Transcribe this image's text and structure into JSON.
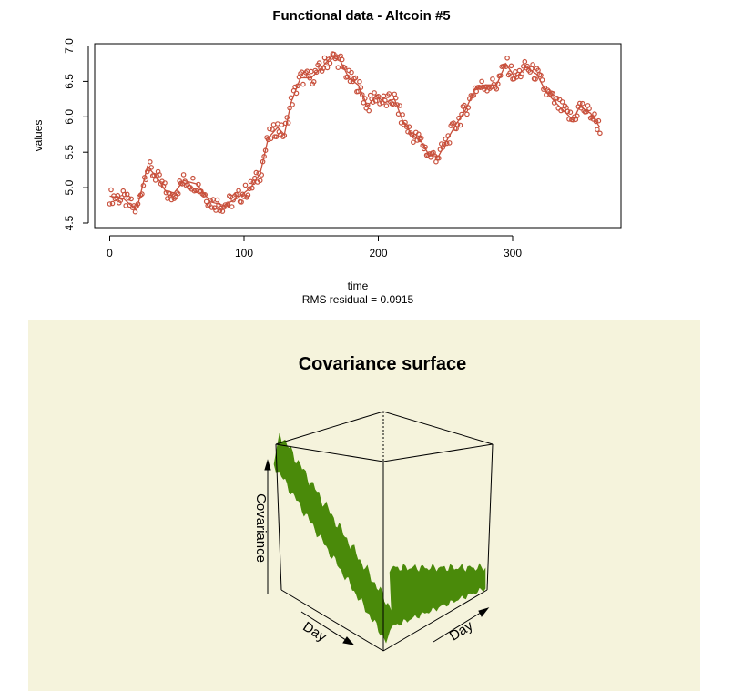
{
  "colors": {
    "series": "#c8503c",
    "surface": "#4a8a0a",
    "panel_background": "#f5f3dc",
    "axes": "#000000"
  },
  "chart_data": [
    {
      "type": "line",
      "title": "Functional data - Altcoin #5",
      "xlabel": "time",
      "ylabel": "values",
      "subtitle": "RMS residual = 0.0915",
      "xlim": [
        -5,
        370
      ],
      "ylim": [
        4.45,
        7.0
      ],
      "x_ticks": [
        "0",
        "100",
        "200",
        "300"
      ],
      "y_ticks": [
        "4.5",
        "5.0",
        "5.5",
        "6.0",
        "6.5",
        "7.0"
      ],
      "grid": false,
      "markers": "open circles",
      "series": [
        {
          "x": [
            0,
            10,
            20,
            28,
            35,
            45,
            55,
            65,
            75,
            85,
            95,
            105,
            112,
            118,
            125,
            130,
            135,
            142,
            150,
            158,
            165,
            172,
            178,
            185,
            192,
            198,
            205,
            212,
            218,
            225,
            232,
            238,
            245,
            252,
            258,
            265,
            272,
            280,
            288,
            295,
            302,
            310,
            318,
            325,
            332,
            340,
            345,
            350,
            358,
            365
          ],
          "values": [
            4.88,
            4.85,
            4.68,
            5.3,
            5.15,
            4.85,
            5.1,
            5.05,
            4.8,
            4.75,
            4.85,
            5.0,
            5.2,
            5.7,
            5.85,
            5.75,
            6.2,
            6.55,
            6.55,
            6.7,
            6.85,
            6.78,
            6.55,
            6.45,
            6.15,
            6.3,
            6.2,
            6.25,
            5.95,
            5.75,
            5.65,
            5.45,
            5.45,
            5.7,
            5.9,
            6.1,
            6.4,
            6.45,
            6.45,
            6.75,
            6.55,
            6.7,
            6.6,
            6.35,
            6.2,
            6.05,
            5.95,
            6.15,
            6.05,
            5.85
          ]
        }
      ]
    },
    {
      "type": "surface",
      "title": "Covariance surface",
      "axes": [
        "Day",
        "Day",
        "Covariance"
      ]
    }
  ]
}
